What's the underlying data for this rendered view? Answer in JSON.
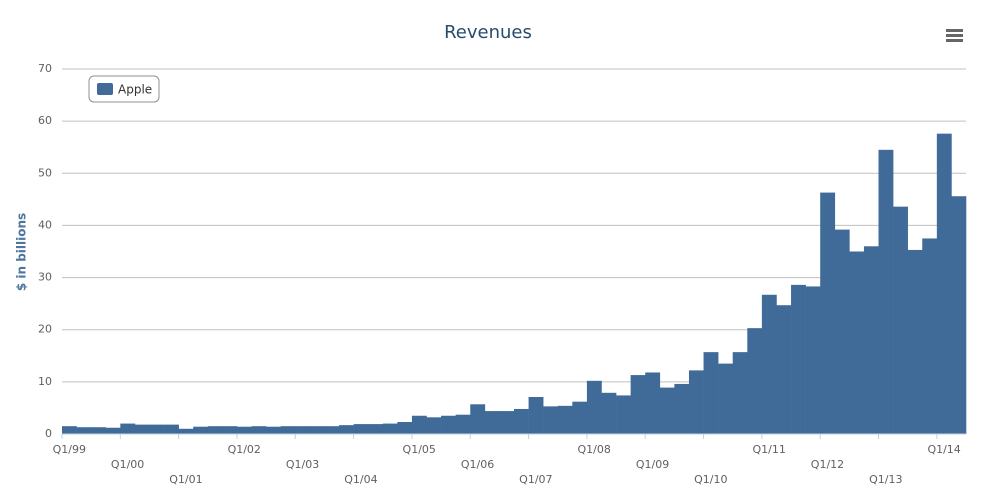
{
  "chart_data": {
    "type": "bar",
    "title": "Revenues",
    "y_label": "$ in billions",
    "categories": [
      "Q1/99",
      null,
      null,
      null,
      "Q1/00",
      null,
      null,
      null,
      "Q1/01",
      null,
      null,
      null,
      "Q1/02",
      null,
      null,
      null,
      "Q1/03",
      null,
      null,
      null,
      "Q1/04",
      null,
      null,
      null,
      "Q1/05",
      null,
      null,
      null,
      "Q1/06",
      null,
      null,
      null,
      "Q1/07",
      null,
      null,
      null,
      "Q1/08",
      null,
      null,
      null,
      "Q1/09",
      null,
      null,
      null,
      "Q1/10",
      null,
      null,
      null,
      "Q1/11",
      null,
      null,
      null,
      "Q1/12",
      null,
      null,
      null,
      "Q1/13",
      null,
      null,
      null,
      "Q1/14",
      null
    ],
    "series": [
      {
        "name": "Apple",
        "color": "#406b99",
        "values": [
          1.5,
          1.3,
          1.3,
          1.2,
          2.0,
          1.8,
          1.8,
          1.8,
          1.0,
          1.4,
          1.5,
          1.5,
          1.4,
          1.5,
          1.4,
          1.5,
          1.5,
          1.5,
          1.5,
          1.7,
          1.9,
          1.9,
          2.0,
          2.3,
          3.5,
          3.2,
          3.5,
          3.7,
          5.7,
          4.4,
          4.4,
          4.8,
          7.1,
          5.3,
          5.4,
          6.2,
          10.2,
          7.9,
          7.4,
          11.3,
          11.8,
          8.9,
          9.6,
          12.2,
          15.7,
          13.5,
          15.7,
          20.3,
          26.7,
          24.7,
          28.6,
          28.3,
          46.3,
          39.2,
          35.0,
          36.0,
          54.5,
          43.6,
          35.3,
          37.5,
          57.6,
          45.6
        ]
      }
    ],
    "ylim": [
      0,
      70
    ],
    "yticks": [
      0,
      10,
      20,
      30,
      40,
      50,
      60,
      70
    ],
    "grid": true,
    "legend": "top-left"
  }
}
